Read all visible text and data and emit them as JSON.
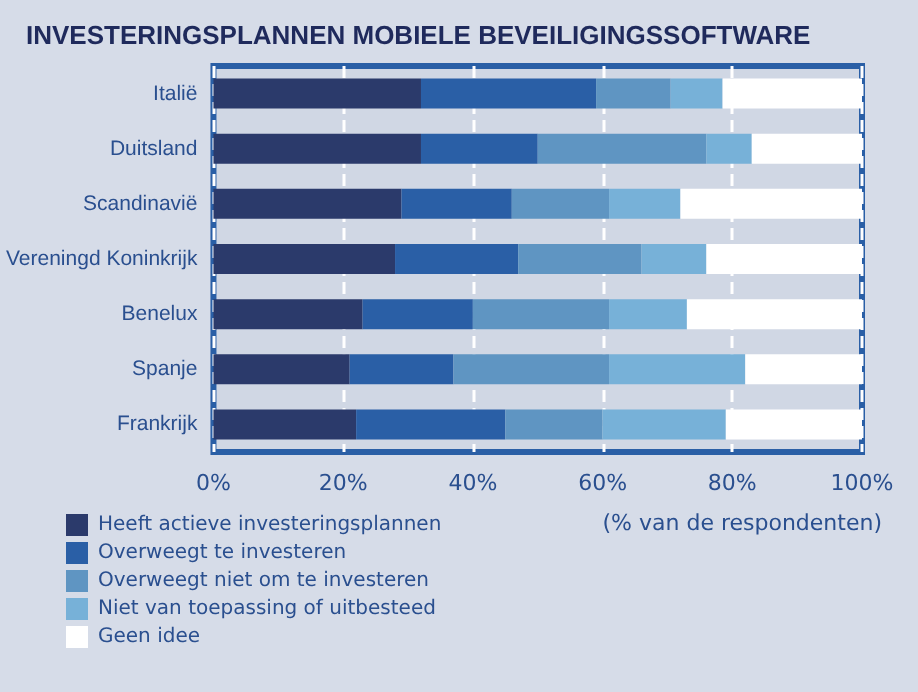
{
  "chart_data": {
    "type": "bar",
    "orientation": "horizontal",
    "stacked": true,
    "title": "INVESTERINGSPLANNEN MOBIELE BEVEILIGINGSSOFTWARE",
    "xlabel": "(% van de respondenten)",
    "categories": [
      "Italië",
      "Duitsland",
      "Scandinavië",
      "Vereningd Koninkrijk",
      "Benelux",
      "Spanje",
      "Frankrijk"
    ],
    "series": [
      {
        "name": "Heeft actieve investeringsplannen",
        "color": "#2b3a6b",
        "values": [
          32,
          32,
          29,
          28,
          23,
          21,
          22
        ]
      },
      {
        "name": "Overweegt te investeren",
        "color": "#2a5fa6",
        "values": [
          27,
          18,
          17,
          19,
          17,
          16,
          23
        ]
      },
      {
        "name": "Overweegt niet om te investeren",
        "color": "#5f95c2",
        "values": [
          11.5,
          26,
          15,
          19,
          21,
          24,
          15
        ]
      },
      {
        "name": "Niet van toepassing of uitbesteed",
        "color": "#77b1d8",
        "values": [
          8,
          7,
          11,
          10,
          12,
          21,
          19
        ]
      },
      {
        "name": "Geen idee",
        "color": "#ffffff",
        "values": [
          21.5,
          17,
          28,
          24,
          27,
          18,
          21
        ]
      }
    ],
    "xlim": [
      0,
      100
    ],
    "xticks": [
      {
        "value": 0,
        "label": "0%"
      },
      {
        "value": 20,
        "label": "20%"
      },
      {
        "value": 40,
        "label": "40%"
      },
      {
        "value": 60,
        "label": "60%"
      },
      {
        "value": 80,
        "label": "80%"
      },
      {
        "value": 100,
        "label": "100%"
      }
    ],
    "grid": "x",
    "legend": "bottom left"
  }
}
